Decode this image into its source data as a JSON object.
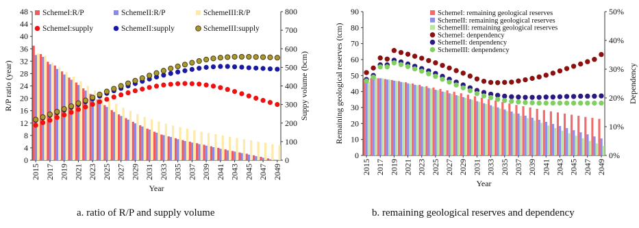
{
  "captions": {
    "a": "a. ratio of R/P and supply volume",
    "b": "b. remaining geological reserves and dependency"
  },
  "colors": {
    "s1_bar": "#f05a5a",
    "s2_bar": "#8a8ae6",
    "s3_bar": "#fde9a8",
    "s1_dot": "#ee1111",
    "s2_dot": "#1a1aa0",
    "s3_dot": "#a89830",
    "b_s1_bar": "#f26a6a",
    "b_s2_bar": "#8f8fe8",
    "b_s3_bar": "#b8e6a0",
    "b_s1_dot": "#8b1010",
    "b_s2_dot": "#2a1a80",
    "b_s3_dot": "#7fd05f"
  },
  "chart_data": [
    {
      "type": "bar",
      "panel": "a",
      "xlabel": "Year",
      "ylabel": "R/P  ratio  (year)",
      "ylabel_right": "Suppy volume (bcm)",
      "ylim": [
        0,
        48
      ],
      "yticks": [
        0,
        4,
        8,
        12,
        16,
        20,
        24,
        28,
        32,
        36,
        40,
        44,
        48
      ],
      "ylim_right": [
        0,
        800
      ],
      "yticks_right": [
        0,
        100,
        200,
        300,
        400,
        500,
        600,
        700,
        800
      ],
      "xtick_labels": [
        "2015",
        "2017",
        "2019",
        "2021",
        "2023",
        "2025",
        "2027",
        "2029",
        "2031",
        "2033",
        "2035",
        "2037",
        "2039",
        "2041",
        "2043",
        "2045",
        "2047",
        "2049"
      ],
      "x": [
        2015,
        2016,
        2017,
        2018,
        2019,
        2020,
        2021,
        2022,
        2023,
        2024,
        2025,
        2026,
        2027,
        2028,
        2029,
        2030,
        2031,
        2032,
        2033,
        2034,
        2035,
        2036,
        2037,
        2038,
        2039,
        2040,
        2041,
        2042,
        2043,
        2044,
        2045,
        2046,
        2047,
        2048,
        2049
      ],
      "legend": [
        "SchemeI:R/P",
        "SchemeII:R/P",
        "SchemeIII:R/P",
        "SchemeI:supply",
        "SchemeII:supply",
        "SchemeIII:supply"
      ],
      "legend_position": "top-left",
      "bar_series": [
        {
          "name": "SchemeI:R/P",
          "values": [
            37,
            34.3,
            31.8,
            30.6,
            28.7,
            26.7,
            25.1,
            23.2,
            21.4,
            19.6,
            17.8,
            16.2,
            14.8,
            13.6,
            12.4,
            11.3,
            10.2,
            9.2,
            8.3,
            7.7,
            7.1,
            6.5,
            6.0,
            5.5,
            5.0,
            4.5,
            4.0,
            3.5,
            3.0,
            2.5,
            2.1,
            1.6,
            1.1,
            0.6,
            0.1
          ]
        },
        {
          "name": "SchemeII:R/P",
          "values": [
            34,
            33.4,
            31,
            29.5,
            27.7,
            26,
            24.3,
            22.5,
            20.7,
            19,
            17.2,
            15.6,
            14.3,
            13.1,
            11.9,
            10.9,
            9.9,
            8.9,
            8.1,
            7.5,
            6.8,
            6.2,
            5.7,
            5.2,
            4.7,
            4.2,
            3.7,
            3.2,
            2.8,
            2.3,
            1.8,
            1.3,
            0.8,
            0.3,
            0.1
          ]
        },
        {
          "name": "SchemeIII:R/P",
          "values": [
            34.5,
            33.8,
            31.5,
            30,
            28.5,
            27,
            25.5,
            24,
            22.5,
            21,
            19.5,
            18.2,
            17,
            15.9,
            14.9,
            14,
            13.2,
            12.5,
            11.8,
            11.2,
            10.7,
            10.2,
            9.7,
            9.2,
            8.8,
            8.4,
            8,
            7.6,
            7.2,
            6.8,
            6.4,
            6.0,
            5.6,
            5.2,
            4.9
          ]
        }
      ],
      "line_series": [
        {
          "name": "SchemeI:supply",
          "axis": "right",
          "values": [
            188,
            202,
            215,
            230,
            244,
            258,
            273,
            287,
            301,
            315,
            328,
            340,
            352,
            363,
            374,
            383,
            392,
            399,
            405,
            409,
            412,
            413,
            412,
            410,
            405,
            399,
            391,
            381,
            370,
            358,
            346,
            334,
            322,
            311,
            300
          ]
        },
        {
          "name": "SchemeII:supply",
          "axis": "right",
          "values": [
            215,
            228,
            242,
            256,
            270,
            285,
            300,
            315,
            330,
            345,
            360,
            374,
            387,
            400,
            413,
            425,
            437,
            448,
            458,
            467,
            475,
            482,
            489,
            495,
            500,
            503,
            505,
            505,
            503,
            501,
            498,
            496,
            494,
            492,
            490
          ]
        },
        {
          "name": "SchemeIII:supply",
          "axis": "right",
          "values": [
            219,
            232,
            247,
            261,
            276,
            291,
            307,
            322,
            338,
            354,
            370,
            385,
            400,
            414,
            428,
            442,
            456,
            469,
            482,
            494,
            505,
            515,
            525,
            534,
            542,
            548,
            552,
            555,
            557,
            557,
            557,
            556,
            555,
            554,
            552
          ]
        }
      ]
    },
    {
      "type": "bar",
      "panel": "b",
      "xlabel": "Year",
      "ylabel": "Remaining  geological  reserves   (tcm)",
      "ylabel_right": "Dependency",
      "ylim": [
        0,
        90
      ],
      "yticks": [
        0,
        10,
        20,
        30,
        40,
        50,
        60,
        70,
        80,
        90
      ],
      "ylim_right": [
        0,
        50
      ],
      "yticks_right": [
        "0%",
        "10%",
        "20%",
        "30%",
        "40%",
        "50%"
      ],
      "xtick_labels": [
        "2015",
        "2017",
        "2019",
        "2021",
        "2023",
        "2025",
        "2027",
        "2029",
        "2031",
        "2033",
        "2035",
        "2037",
        "2039",
        "2041",
        "2043",
        "2045",
        "2047",
        "2049"
      ],
      "x": [
        2015,
        2016,
        2017,
        2018,
        2019,
        2020,
        2021,
        2022,
        2023,
        2024,
        2025,
        2026,
        2027,
        2028,
        2029,
        2030,
        2031,
        2032,
        2033,
        2034,
        2035,
        2036,
        2037,
        2038,
        2039,
        2040,
        2041,
        2042,
        2043,
        2044,
        2045,
        2046,
        2047,
        2048,
        2049
      ],
      "legend": [
        "SchemeI:    remaining geological reserves",
        "SchemeII:    remaining geological reserves",
        "SchemeIII:   remaining geological reserves",
        "SchemeI:    denpendency",
        "SchemeII:    denpendency",
        "SchemeIII:    denpendency"
      ],
      "legend_position": "top-right",
      "bar_series": [
        {
          "name": "SchemeI:    remaining geological reserves",
          "values": [
            48,
            48.5,
            48.3,
            47.8,
            47.2,
            46.5,
            45.8,
            45,
            44.2,
            43.3,
            42.5,
            41.6,
            40.7,
            39.8,
            38.9,
            38,
            37,
            36.1,
            35.2,
            34.3,
            33.4,
            32.5,
            31.6,
            30.8,
            30,
            29.2,
            28.4,
            27.6,
            26.9,
            26.2,
            25.5,
            24.8,
            24.1,
            23.5,
            22.9
          ]
        },
        {
          "name": "SchemeII:    remaining geological reserves",
          "values": [
            47,
            48.5,
            48.3,
            47.5,
            46.8,
            46,
            45.1,
            44.2,
            43.2,
            42.2,
            41.1,
            40,
            38.9,
            37.7,
            36.5,
            35.3,
            34,
            32.7,
            31.4,
            30.1,
            28.8,
            27.5,
            26.2,
            24.9,
            23.6,
            22.3,
            21,
            19.7,
            18.4,
            17.1,
            15.8,
            14.5,
            13.2,
            11.9,
            10.6
          ]
        },
        {
          "name": "SchemeIII:   remaining geological reserves",
          "values": [
            46,
            48.5,
            48.2,
            47.4,
            46.6,
            45.7,
            44.8,
            43.9,
            42.9,
            41.9,
            40.8,
            39.7,
            38.5,
            37.3,
            36.1,
            34.8,
            33.5,
            32.1,
            30.7,
            29.3,
            27.8,
            26.3,
            24.8,
            23.3,
            21.8,
            20.3,
            18.7,
            17.1,
            15.5,
            13.9,
            12.3,
            10.7,
            9.1,
            7.5,
            5.9
          ]
        }
      ],
      "line_series": [
        {
          "name": "SchemeI:    denpendency",
          "axis": "right",
          "values": [
            28.8,
            30.4,
            33.9,
            33.5,
            36.5,
            35.8,
            35.2,
            34.5,
            33.8,
            33,
            32.2,
            31.3,
            30.4,
            29.5,
            28.6,
            27.6,
            26.6,
            25.8,
            25.4,
            25.3,
            25.4,
            25.5,
            25.9,
            26.3,
            26.8,
            27.3,
            27.9,
            28.6,
            29.4,
            30.2,
            31,
            31.8,
            32.6,
            33.4,
            35.1
          ]
        },
        {
          "name": "SchemeII:    denpendency",
          "axis": "right",
          "values": [
            26.4,
            27.8,
            31.5,
            31.5,
            33.1,
            32.5,
            31.8,
            31,
            30.2,
            29.4,
            28.5,
            27.5,
            26.5,
            25.5,
            24.5,
            23.5,
            22.6,
            21.9,
            21.3,
            20.9,
            20.6,
            20.4,
            20.3,
            20.2,
            20.2,
            20.2,
            20.3,
            20.3,
            20.4,
            20.5,
            20.5,
            20.6,
            20.6,
            20.6,
            20.7
          ]
        },
        {
          "name": "SchemeIII:    denpendency",
          "axis": "right",
          "values": [
            25.9,
            27.2,
            30.8,
            30.8,
            32.2,
            31.6,
            30.9,
            30.1,
            29.3,
            28.4,
            27.5,
            26.5,
            25.5,
            24.5,
            23.5,
            22.5,
            21.5,
            20.7,
            20.1,
            19.5,
            19.1,
            18.8,
            18.6,
            18.4,
            18.3,
            18.2,
            18.2,
            18.2,
            18.2,
            18.2,
            18.2,
            18.2,
            18.2,
            18.2,
            18.2
          ]
        }
      ]
    }
  ]
}
